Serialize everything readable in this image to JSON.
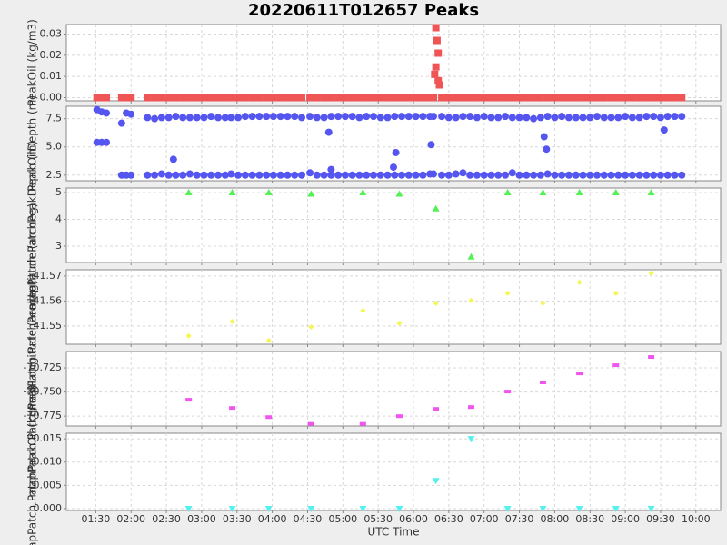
{
  "chart_data": [
    {
      "type": "scatter",
      "title": "20220611T012657 Peaks",
      "ylabel": "PeakOil (kg/m3)",
      "ylim": [
        -0.0015,
        0.0345
      ],
      "yticks": [
        {
          "value": 0,
          "label": "0.00"
        },
        {
          "value": 0.01,
          "label": "0.01"
        },
        {
          "value": 0.02,
          "label": "0.02"
        },
        {
          "value": 0.03,
          "label": "0.03"
        }
      ],
      "x": [
        "01:31",
        "01:35",
        "01:39",
        "01:52",
        "01:56",
        "02:00",
        "02:14",
        "02:20",
        "02:26",
        "02:32",
        "02:38",
        "02:44",
        "02:50",
        "02:56",
        "03:02",
        "03:08",
        "03:14",
        "03:20",
        "03:25",
        "03:31",
        "03:37",
        "03:43",
        "03:49",
        "03:55",
        "04:01",
        "04:07",
        "04:13",
        "04:19",
        "04:25",
        "04:32",
        "04:38",
        "04:44",
        "04:50",
        "04:56",
        "05:02",
        "05:08",
        "05:14",
        "05:20",
        "05:26",
        "05:32",
        "05:38",
        "05:44",
        "05:50",
        "05:56",
        "06:02",
        "06:08",
        "06:14",
        "06:17",
        "06:18",
        "06:19",
        "06:19",
        "06:20",
        "06:21",
        "06:21",
        "06:22",
        "06:24",
        "06:30",
        "06:36",
        "06:42",
        "06:48",
        "06:54",
        "07:00",
        "07:06",
        "07:12",
        "07:18",
        "07:24",
        "07:30",
        "07:36",
        "07:42",
        "07:48",
        "07:54",
        "08:00",
        "08:06",
        "08:12",
        "08:18",
        "08:24",
        "08:30",
        "08:36",
        "08:42",
        "08:48",
        "08:54",
        "09:00",
        "09:06",
        "09:12",
        "09:18",
        "09:24",
        "09:30",
        "09:36",
        "09:42",
        "09:48"
      ],
      "series": [
        {
          "color": "#f05555",
          "marker": "square",
          "values": [
            0,
            0,
            0,
            0,
            0,
            0,
            0,
            0,
            0,
            0,
            0,
            0,
            0,
            0,
            0,
            0,
            0,
            0,
            0,
            0,
            0,
            0,
            0,
            0,
            0,
            0,
            0,
            0,
            0,
            0,
            0,
            0,
            0,
            0,
            0,
            0,
            0,
            0,
            0,
            0,
            0,
            0,
            0,
            0,
            0,
            0,
            0,
            0,
            0.011,
            0.033,
            0.0145,
            0.027,
            0.021,
            0.008,
            0.006,
            0,
            0,
            0,
            0,
            0,
            0,
            0,
            0,
            0,
            0,
            0,
            0,
            0,
            0,
            0,
            0,
            0,
            0,
            0,
            0,
            0,
            0,
            0,
            0,
            0,
            0,
            0,
            0,
            0,
            0,
            0,
            0,
            0,
            0,
            0
          ]
        }
      ]
    },
    {
      "type": "scatter",
      "ylabel": "PeakOilDepth (m)",
      "ylim": [
        2.0,
        8.6
      ],
      "yticks": [
        2.5,
        {
          "value": 5,
          "label": "5.0"
        },
        7.5
      ],
      "x": [
        "01:31",
        "01:35",
        "01:39",
        "01:52",
        "01:56",
        "02:00",
        "02:14",
        "02:20",
        "02:26",
        "02:32",
        "02:38",
        "02:44",
        "02:50",
        "02:56",
        "03:02",
        "03:08",
        "03:14",
        "03:20",
        "03:25",
        "03:31",
        "03:37",
        "03:43",
        "03:49",
        "03:55",
        "04:01",
        "04:07",
        "04:13",
        "04:19",
        "04:25",
        "04:32",
        "04:38",
        "04:44",
        "04:50",
        "04:56",
        "05:02",
        "05:08",
        "05:14",
        "05:20",
        "05:26",
        "05:32",
        "05:38",
        "05:44",
        "05:50",
        "05:56",
        "06:02",
        "06:08",
        "06:14",
        "06:17",
        "06:24",
        "06:30",
        "06:36",
        "06:42",
        "06:48",
        "06:54",
        "07:00",
        "07:06",
        "07:12",
        "07:18",
        "07:24",
        "07:30",
        "07:36",
        "07:42",
        "07:48",
        "07:54",
        "08:00",
        "08:06",
        "08:12",
        "08:18",
        "08:24",
        "08:30",
        "08:36",
        "08:42",
        "08:48",
        "08:54",
        "09:00",
        "09:06",
        "09:12",
        "09:18",
        "09:24",
        "09:30",
        "09:36",
        "09:42",
        "09:48"
      ],
      "series": [
        {
          "color": "#5555f0",
          "marker": "circle",
          "values": [
            8.3,
            8.1,
            8.0,
            7.1,
            8.0,
            7.9,
            7.6,
            7.5,
            7.6,
            7.6,
            7.7,
            7.6,
            7.6,
            7.6,
            7.6,
            7.7,
            7.6,
            7.6,
            7.6,
            7.6,
            7.7,
            7.7,
            7.7,
            7.7,
            7.7,
            7.7,
            7.7,
            7.7,
            7.6,
            7.7,
            7.6,
            7.6,
            7.7,
            7.7,
            7.7,
            7.7,
            7.6,
            7.7,
            7.7,
            7.6,
            7.6,
            7.7,
            7.7,
            7.7,
            7.7,
            7.7,
            7.7,
            7.7,
            7.7,
            7.6,
            7.6,
            7.7,
            7.7,
            7.6,
            7.7,
            7.6,
            7.6,
            7.7,
            7.6,
            7.6,
            7.6,
            7.5,
            7.6,
            7.7,
            7.6,
            7.7,
            7.6,
            7.6,
            7.6,
            7.6,
            7.7,
            7.6,
            7.6,
            7.6,
            7.7,
            7.6,
            7.6,
            7.7,
            7.7,
            7.6,
            7.7,
            7.7,
            7.7
          ]
        },
        {
          "color": "#5555f0",
          "marker": "circle",
          "values": [
            5.4,
            5.4,
            5.4,
            2.5,
            2.5,
            2.5,
            2.5,
            2.5,
            2.6,
            2.5,
            2.5,
            2.5,
            2.6,
            2.5,
            2.5,
            2.5,
            2.5,
            2.5,
            2.6,
            2.5,
            2.5,
            2.5,
            2.5,
            2.5,
            2.5,
            2.5,
            2.5,
            2.5,
            2.5,
            2.7,
            2.5,
            2.5,
            2.5,
            2.5,
            2.5,
            2.5,
            2.5,
            2.5,
            2.5,
            2.5,
            2.5,
            2.5,
            2.5,
            2.5,
            2.5,
            2.5,
            2.6,
            2.6,
            2.5,
            2.5,
            2.6,
            2.7,
            2.5,
            2.5,
            2.5,
            2.5,
            2.5,
            2.5,
            2.7,
            2.5,
            2.5,
            2.5,
            2.5,
            2.6,
            2.5,
            2.5,
            2.5,
            2.5,
            2.5,
            2.5,
            2.5,
            2.5,
            2.5,
            2.5,
            2.5,
            2.5,
            2.5,
            2.5,
            2.5,
            2.5,
            2.5,
            2.5,
            2.5
          ]
        },
        {
          "color": "#5555f0",
          "marker": "circle",
          "x": [
            "02:36",
            "04:48",
            "04:50",
            "05:43",
            "05:45",
            "06:15",
            "07:51",
            "07:53",
            "09:33"
          ],
          "values": [
            3.9,
            6.3,
            3.0,
            3.2,
            4.5,
            5.2,
            5.9,
            4.8,
            6.5
          ]
        }
      ]
    },
    {
      "type": "scatter",
      "ylabel": "mapPatch.PatchPeakDepth (m)",
      "ylim": [
        2.39,
        5.17
      ],
      "yticks": [
        3,
        4,
        5
      ],
      "x": [
        "02:49",
        "03:26",
        "03:57",
        "04:33",
        "05:17",
        "05:48",
        "06:19",
        "06:49",
        "07:20",
        "07:50",
        "08:21",
        "08:52",
        "09:22"
      ],
      "series": [
        {
          "color": "#55f055",
          "marker": "triangle",
          "values": [
            5.0,
            5.0,
            5.0,
            4.95,
            5.0,
            4.95,
            4.4,
            2.6,
            5.0,
            5.0,
            5.0,
            5.0,
            5.0
          ]
        }
      ]
    },
    {
      "type": "scatter",
      "ylabel": "mapPatch.PatchPeakLatitude (arcdeg)",
      "ylim": [
        41.5427,
        41.5725
      ],
      "yticks": [
        41.55,
        41.56,
        41.57
      ],
      "x": [
        "02:49",
        "03:26",
        "03:57",
        "04:33",
        "05:17",
        "05:48",
        "06:19",
        "06:49",
        "07:20",
        "07:50",
        "08:21",
        "08:52",
        "09:22"
      ],
      "series": [
        {
          "color": "#f5f555",
          "marker": "diamond",
          "values": [
            41.546,
            41.5518,
            41.5442,
            41.5496,
            41.5562,
            41.5511,
            41.5591,
            41.5602,
            41.5631,
            41.5591,
            41.5675,
            41.5631,
            41.5711
          ]
        }
      ]
    },
    {
      "type": "scatter",
      "ylabel": "mapPatch.PatchPeakLongitude (arcdeg)",
      "ylim": [
        -70.7852,
        -70.708
      ],
      "yticks": [
        -70.775,
        {
          "value": -70.75,
          "label": "-70.750"
        },
        -70.725
      ],
      "x": [
        "02:49",
        "03:26",
        "03:57",
        "04:33",
        "05:17",
        "05:48",
        "06:19",
        "06:49",
        "07:20",
        "07:50",
        "08:21",
        "08:52",
        "09:22"
      ],
      "series": [
        {
          "color": "#f055f0",
          "marker": "rect",
          "values": [
            -70.758,
            -70.7665,
            -70.776,
            -70.783,
            -70.783,
            -70.775,
            -70.7675,
            -70.7656,
            -70.7495,
            -70.74,
            -70.7307,
            -70.7222,
            -70.7137
          ]
        }
      ]
    },
    {
      "type": "scatter",
      "ylabel": "mapPatch.PatchPeakOil (kg/m3)",
      "xlabel": "UTC Time",
      "ylim": [
        -0.0004,
        0.0162
      ],
      "yticks": [
        {
          "value": 0,
          "label": "0.000"
        },
        {
          "value": 0.005,
          "label": "0.005"
        },
        {
          "value": 0.01,
          "label": "0.010"
        },
        {
          "value": 0.015,
          "label": "0.015"
        }
      ],
      "xlim": [
        "01:05",
        "10:21"
      ],
      "xticks": [
        "01:30",
        "02:00",
        "02:30",
        "03:00",
        "03:30",
        "04:00",
        "04:30",
        "05:00",
        "05:30",
        "06:00",
        "06:30",
        "07:00",
        "07:30",
        "08:00",
        "08:30",
        "09:00",
        "09:30",
        "10:00"
      ],
      "x": [
        "02:49",
        "03:26",
        "03:57",
        "04:33",
        "05:17",
        "05:48",
        "06:19",
        "06:49",
        "07:20",
        "07:50",
        "08:21",
        "08:52",
        "09:22"
      ],
      "series": [
        {
          "color": "#55f0f0",
          "marker": "triangle-down",
          "values": [
            0,
            0,
            0,
            0,
            0,
            0,
            0.006,
            0.015,
            0,
            0,
            0,
            0,
            0
          ]
        }
      ]
    }
  ]
}
